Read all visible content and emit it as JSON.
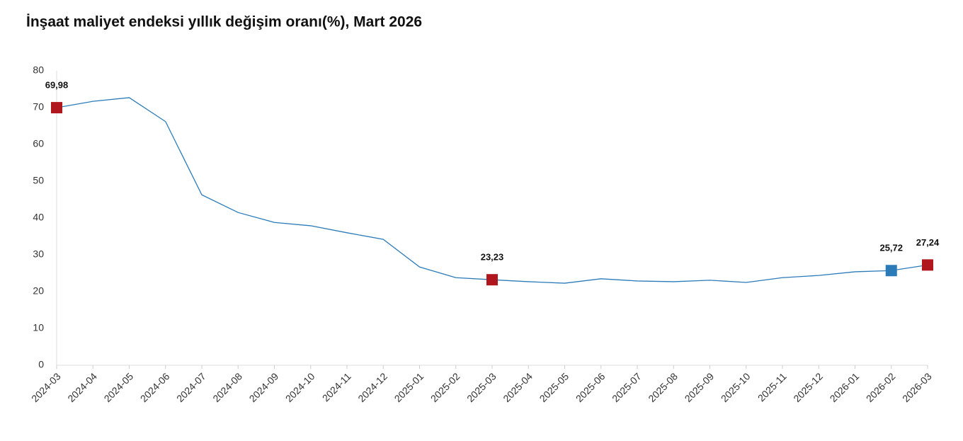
{
  "chart_data": {
    "type": "line",
    "title": "İnşaat maliyet endeksi yıllık değişim oranı(%), Mart 2026",
    "categories": [
      "2024-03",
      "2024-04",
      "2024-05",
      "2024-06",
      "2024-07",
      "2024-08",
      "2024-09",
      "2024-10",
      "2024-11",
      "2024-12",
      "2025-01",
      "2025-02",
      "2025-03",
      "2025-04",
      "2025-05",
      "2025-06",
      "2025-07",
      "2025-08",
      "2025-09",
      "2025-10",
      "2025-11",
      "2025-12",
      "2026-01",
      "2026-02",
      "2026-03"
    ],
    "series": [
      {
        "color": "#2b7bb9",
        "values": [
          69.98,
          71.7,
          72.7,
          66.2,
          46.3,
          41.5,
          38.8,
          37.9,
          36.0,
          34.2,
          26.7,
          23.8,
          23.23,
          22.7,
          22.3,
          23.5,
          22.9,
          22.7,
          23.1,
          22.5,
          23.8,
          24.4,
          25.4,
          25.72,
          27.24
        ],
        "value_labels": [
          "69,98",
          null,
          null,
          null,
          null,
          null,
          null,
          null,
          null,
          null,
          null,
          null,
          "23,23",
          null,
          null,
          null,
          null,
          null,
          null,
          null,
          null,
          null,
          null,
          "25,72",
          "27,24"
        ],
        "marker_colors": [
          "#b0161d",
          null,
          null,
          null,
          null,
          null,
          null,
          null,
          null,
          null,
          null,
          null,
          "#b0161d",
          null,
          null,
          null,
          null,
          null,
          null,
          null,
          null,
          null,
          null,
          "#2b7bb9",
          "#b0161d"
        ]
      }
    ],
    "ylim": [
      0,
      80
    ],
    "yticks": [
      0,
      10,
      20,
      30,
      40,
      50,
      60,
      70,
      80
    ],
    "grid": false
  }
}
